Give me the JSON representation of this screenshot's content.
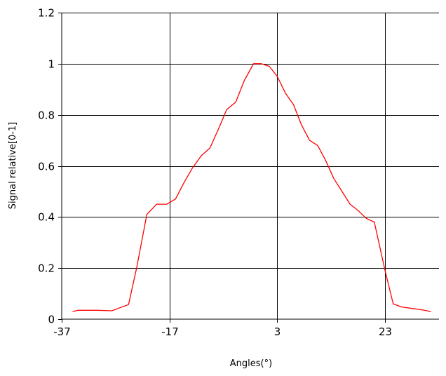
{
  "chart_data": {
    "type": "line",
    "title": "",
    "xlabel": "Angles(°)",
    "ylabel": "Signal relative[0-1]",
    "xlim": [
      -37,
      33
    ],
    "ylim": [
      0,
      1.2
    ],
    "x_ticks": [
      -37,
      -17,
      3,
      23
    ],
    "y_ticks": [
      0,
      0.2,
      0.4,
      0.6,
      0.8,
      1,
      1.2
    ],
    "x_tick_labels": [
      "-37",
      "-17",
      "3",
      "23"
    ],
    "y_tick_labels": [
      "0",
      "0.2",
      "0.4",
      "0.6",
      "0.8",
      "1",
      "1.2"
    ],
    "grid": true,
    "legend": "none",
    "series": [
      {
        "color": "#ff0000",
        "x": [
          -35,
          -33.9,
          -30.5,
          -27.7,
          -24.6,
          -23.1,
          -21.2,
          -19.4,
          -17.5,
          -15.9,
          -14.3,
          -12.8,
          -11.1,
          -9.5,
          -7.8,
          -6.4,
          -4.7,
          -3.1,
          -1.4,
          0,
          1.5,
          3,
          4.5,
          6,
          7.5,
          9,
          10.5,
          12,
          13.5,
          15,
          16.5,
          18,
          19.5,
          21,
          23,
          24.5,
          26,
          28,
          30,
          31.5
        ],
        "y": [
          0.03,
          0.035,
          0.035,
          0.033,
          0.057,
          0.2,
          0.41,
          0.45,
          0.45,
          0.47,
          0.535,
          0.59,
          0.64,
          0.67,
          0.75,
          0.82,
          0.85,
          0.935,
          1,
          1,
          0.99,
          0.95,
          0.885,
          0.84,
          0.76,
          0.7,
          0.68,
          0.62,
          0.55,
          0.5,
          0.45,
          0.425,
          0.395,
          0.38,
          0.19,
          0.06,
          0.048,
          0.042,
          0.036,
          0.03
        ]
      }
    ]
  }
}
